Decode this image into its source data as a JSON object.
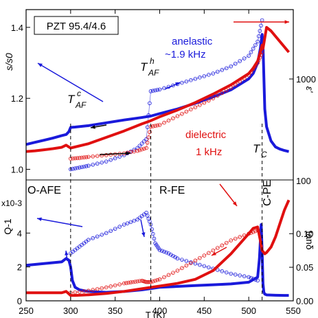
{
  "chart_data": [
    {
      "type": "line",
      "panel": "top",
      "title_box": "PZT 95.4/4.6",
      "ylabel_left": "s/s0",
      "ylabel_right": "ε'",
      "x": {
        "lim": [
          250,
          550
        ],
        "ticks": [
          250,
          300,
          350,
          400,
          450,
          500,
          550
        ],
        "label": "T (K)"
      },
      "y_left": {
        "lim": [
          0.97,
          1.45
        ],
        "ticks": [
          1.0,
          1.2,
          1.4
        ],
        "tick_labels": [
          "1.0",
          "1.2",
          "1.4"
        ]
      },
      "y_right": {
        "scale": "log",
        "tick_labels": [
          "1000"
        ]
      },
      "series": [
        {
          "name": "anelastic ~1.9 kHz",
          "axis": "left",
          "color": "#1a1adb",
          "style": "filled-line",
          "x": [
            250,
            260,
            270,
            280,
            290,
            295,
            298,
            300,
            305,
            320,
            340,
            360,
            380,
            390,
            400,
            420,
            440,
            460,
            480,
            500,
            505,
            510,
            513,
            515,
            516,
            518,
            520,
            525,
            530,
            535,
            540,
            545
          ],
          "y": [
            1.07,
            1.076,
            1.082,
            1.088,
            1.095,
            1.098,
            1.106,
            1.118,
            1.119,
            1.123,
            1.131,
            1.139,
            1.146,
            1.15,
            1.157,
            1.17,
            1.186,
            1.204,
            1.224,
            1.255,
            1.27,
            1.3,
            1.34,
            1.38,
            1.35,
            1.17,
            1.12,
            1.08,
            1.063,
            1.057,
            1.053,
            1.05
          ]
        },
        {
          "name": "anelastic cooling",
          "axis": "left",
          "color": "#1a1adb",
          "style": "open-circles",
          "x": [
            300,
            310,
            320,
            340,
            360,
            375,
            385,
            390,
            400,
            420,
            440,
            460,
            480,
            500,
            510,
            515
          ],
          "y": [
            1.0,
            1.005,
            1.01,
            1.022,
            1.04,
            1.06,
            1.085,
            1.22,
            1.225,
            1.24,
            1.255,
            1.27,
            1.29,
            1.32,
            1.36,
            1.42
          ]
        },
        {
          "name": "dielectric 1 kHz",
          "axis": "right",
          "color": "#e01010",
          "style": "filled-line",
          "x": [
            250,
            260,
            270,
            280,
            290,
            295,
            298,
            300,
            320,
            340,
            360,
            380,
            390,
            400,
            420,
            440,
            460,
            480,
            500,
            505,
            510,
            513,
            515,
            516,
            518,
            520,
            525,
            530,
            535,
            540,
            545
          ],
          "y": [
            1.05,
            1.052,
            1.055,
            1.058,
            1.062,
            1.068,
            1.063,
            1.06,
            1.072,
            1.09,
            1.108,
            1.128,
            1.137,
            1.148,
            1.167,
            1.188,
            1.212,
            1.238,
            1.27,
            1.285,
            1.305,
            1.33,
            1.35,
            1.34,
            1.37,
            1.4,
            1.39,
            1.375,
            1.36,
            1.345,
            1.33
          ]
        },
        {
          "name": "dielectric cooling",
          "axis": "right",
          "color": "#e01010",
          "style": "open-circles",
          "x": [
            300,
            310,
            320,
            340,
            360,
            375,
            385,
            390,
            400,
            420,
            440,
            460,
            480,
            500,
            510,
            515
          ],
          "y": [
            1.03,
            1.032,
            1.035,
            1.04,
            1.045,
            1.052,
            1.06,
            1.12,
            1.125,
            1.15,
            1.175,
            1.2,
            1.23,
            1.265,
            1.3,
            1.33
          ]
        }
      ],
      "annotations": [
        {
          "text": "anelastic",
          "color": "#1a1adb"
        },
        {
          "text": "~1.9 kHz",
          "color": "#1a1adb"
        },
        {
          "text": "dielectric",
          "color": "#e01010"
        },
        {
          "text": "1 kHz",
          "color": "#e01010"
        },
        {
          "text": "T",
          "sub": "AF",
          "sup": "c"
        },
        {
          "text": "T",
          "sub": "AF",
          "sup": "h"
        },
        {
          "text": "T",
          "sub": "C"
        }
      ],
      "vlines": [
        300,
        390,
        515
      ]
    },
    {
      "type": "line",
      "panel": "bottom",
      "ylabel_left": "Q-1",
      "ylabel_right": "tanδ",
      "y_exponent": "x10-3",
      "x": {
        "lim": [
          250,
          550
        ],
        "ticks": [
          250,
          300,
          350,
          400,
          450,
          500,
          550
        ],
        "tick_labels": [
          "250",
          "300",
          "350",
          "400",
          "450",
          "500",
          "550"
        ],
        "label": "T (K)"
      },
      "y_left": {
        "lim": [
          0,
          6
        ],
        "ticks": [
          0,
          2,
          4
        ],
        "tick_labels": [
          "0",
          "2",
          "4"
        ]
      },
      "y_right": {
        "lim": [
          0,
          0.18
        ],
        "ticks": [
          0.0,
          0.05,
          0.1
        ],
        "tick_labels": [
          "0.00",
          "0.05",
          "0.10"
        ],
        "extra_label": "100"
      },
      "phase_labels": [
        "O-AFE",
        "R-FE",
        "C-PE"
      ],
      "series": [
        {
          "name": "anelastic loss heating",
          "axis": "left",
          "color": "#1a1adb",
          "style": "filled-line",
          "x": [
            250,
            260,
            270,
            280,
            290,
            295,
            298,
            300,
            302,
            305,
            310,
            320,
            340,
            360,
            380,
            400,
            420,
            440,
            460,
            480,
            500,
            510,
            512,
            514,
            515,
            516,
            517,
            518,
            520,
            530,
            540,
            545
          ],
          "y": [
            2.1,
            2.15,
            2.2,
            2.25,
            2.3,
            2.5,
            2.4,
            2.0,
            1.2,
            0.8,
            0.65,
            0.55,
            0.5,
            0.55,
            0.65,
            0.8,
            0.85,
            0.9,
            0.95,
            1.0,
            1.1,
            1.4,
            2.5,
            4.5,
            3.0,
            1.0,
            0.5,
            0.4,
            0.35,
            0.33,
            0.32,
            0.32
          ]
        },
        {
          "name": "anelastic loss cooling",
          "axis": "left",
          "color": "#1a1adb",
          "style": "open-circles",
          "x": [
            300,
            310,
            320,
            340,
            360,
            375,
            385,
            390,
            395,
            400,
            410,
            420,
            440,
            460,
            480,
            500,
            510
          ],
          "y": [
            2.8,
            3.2,
            3.6,
            4.0,
            4.5,
            4.8,
            5.2,
            4.5,
            3.4,
            3.0,
            2.8,
            2.5,
            2.2,
            1.9,
            1.6,
            1.4,
            1.2
          ]
        },
        {
          "name": "dielectric loss heating",
          "axis": "right",
          "color": "#e01010",
          "style": "filled-line",
          "x": [
            250,
            260,
            270,
            280,
            290,
            295,
            300,
            305,
            320,
            340,
            360,
            380,
            400,
            420,
            440,
            460,
            480,
            500,
            505,
            510,
            513,
            515,
            518,
            520,
            525,
            530,
            535,
            540,
            545
          ],
          "y": [
            0.012,
            0.012,
            0.012,
            0.012,
            0.012,
            0.014,
            0.008,
            0.008,
            0.009,
            0.011,
            0.014,
            0.018,
            0.022,
            0.026,
            0.032,
            0.045,
            0.07,
            0.1,
            0.108,
            0.11,
            0.09,
            0.075,
            0.07,
            0.072,
            0.08,
            0.095,
            0.115,
            0.135,
            0.15
          ]
        },
        {
          "name": "dielectric loss cooling",
          "axis": "right",
          "color": "#e01010",
          "style": "open-circles",
          "x": [
            300,
            320,
            340,
            360,
            370,
            380,
            385,
            390,
            400,
            420,
            440,
            460,
            480,
            500,
            510
          ],
          "y": [
            0.012,
            0.015,
            0.02,
            0.026,
            0.028,
            0.03,
            0.028,
            0.028,
            0.032,
            0.045,
            0.06,
            0.075,
            0.09,
            0.1,
            0.105
          ]
        }
      ],
      "vlines": [
        300,
        390,
        515
      ]
    }
  ]
}
